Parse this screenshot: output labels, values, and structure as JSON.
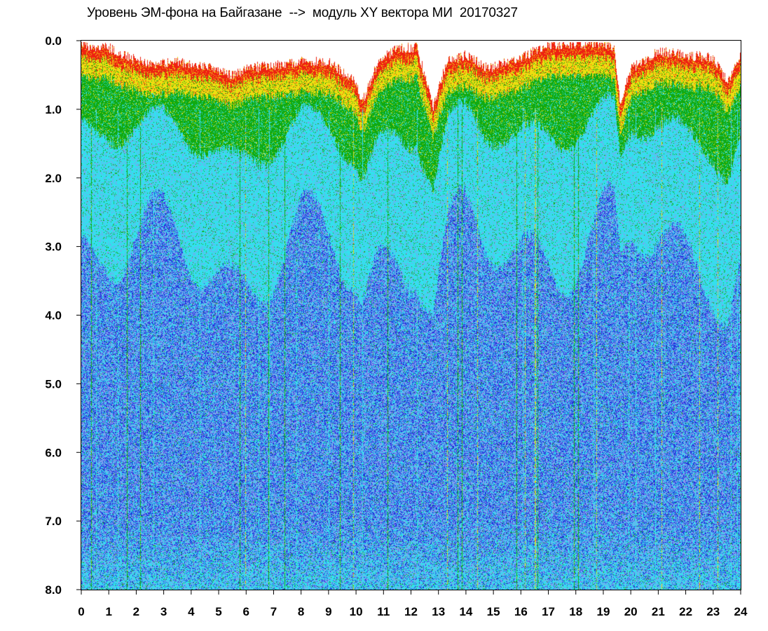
{
  "chart_data": {
    "type": "heatmap",
    "title": "Уровень ЭМ-фона на Байгазане  -->  модуль XY вектора МИ  20170327",
    "xlabel": "",
    "ylabel": "",
    "x_ticks": [
      "0",
      "1",
      "2",
      "3",
      "4",
      "5",
      "6",
      "7",
      "8",
      "9",
      "10",
      "11",
      "12",
      "13",
      "14",
      "15",
      "16",
      "17",
      "18",
      "19",
      "20",
      "21",
      "22",
      "23",
      "24"
    ],
    "y_ticks": [
      "0.0",
      "1.0",
      "2.0",
      "3.0",
      "4.0",
      "5.0",
      "6.0",
      "7.0",
      "8.0"
    ],
    "xlim": [
      0,
      24
    ],
    "ylim": [
      0.0,
      8.0
    ],
    "y_inverted": true,
    "grid": false,
    "colorscale": [
      "#2233dd",
      "#8899ee",
      "#33e0ee",
      "#11aa11",
      "#eedd11",
      "#ee2211"
    ],
    "upper_envelope": [
      {
        "hour": 0.0,
        "y": 0.05
      },
      {
        "hour": 1.0,
        "y": 0.1
      },
      {
        "hour": 1.5,
        "y": 0.2
      },
      {
        "hour": 2.5,
        "y": 0.35
      },
      {
        "hour": 3.5,
        "y": 0.3
      },
      {
        "hour": 4.5,
        "y": 0.35
      },
      {
        "hour": 5.5,
        "y": 0.5
      },
      {
        "hour": 6.0,
        "y": 0.4
      },
      {
        "hour": 7.0,
        "y": 0.35
      },
      {
        "hour": 8.0,
        "y": 0.3
      },
      {
        "hour": 9.0,
        "y": 0.3
      },
      {
        "hour": 10.0,
        "y": 0.6
      },
      {
        "hour": 10.2,
        "y": 0.9
      },
      {
        "hour": 10.8,
        "y": 0.3
      },
      {
        "hour": 11.5,
        "y": 0.1
      },
      {
        "hour": 12.2,
        "y": 0.1
      },
      {
        "hour": 12.5,
        "y": 0.5
      },
      {
        "hour": 12.8,
        "y": 0.95
      },
      {
        "hour": 13.3,
        "y": 0.3
      },
      {
        "hour": 14.0,
        "y": 0.2
      },
      {
        "hour": 14.8,
        "y": 0.4
      },
      {
        "hour": 15.5,
        "y": 0.3
      },
      {
        "hour": 16.2,
        "y": 0.2
      },
      {
        "hour": 17.0,
        "y": 0.05
      },
      {
        "hour": 18.0,
        "y": 0.05
      },
      {
        "hour": 19.0,
        "y": 0.05
      },
      {
        "hour": 19.4,
        "y": 0.1
      },
      {
        "hour": 19.6,
        "y": 0.9
      },
      {
        "hour": 20.0,
        "y": 0.4
      },
      {
        "hour": 21.0,
        "y": 0.15
      },
      {
        "hour": 22.0,
        "y": 0.2
      },
      {
        "hour": 23.0,
        "y": 0.25
      },
      {
        "hour": 23.5,
        "y": 0.6
      },
      {
        "hour": 24.0,
        "y": 0.2
      }
    ]
  }
}
